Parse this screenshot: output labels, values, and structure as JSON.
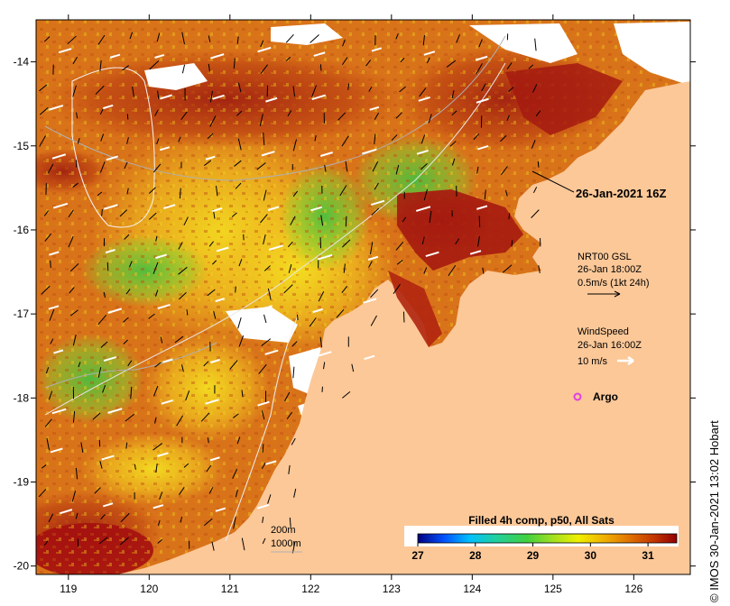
{
  "map": {
    "lon_range": [
      118.6,
      126.7
    ],
    "lat_range": [
      -20.1,
      -13.5
    ],
    "x_ticks": [
      "119",
      "120",
      "121",
      "122",
      "123",
      "124",
      "125",
      "126"
    ],
    "y_ticks": [
      "-14",
      "-15",
      "-16",
      "-17",
      "-18",
      "-19",
      "-20"
    ],
    "colors": {
      "land": "#fcc898",
      "cloud": "#ffffff",
      "sst_warm": "#a52a10",
      "sst_mid": "#e28a1c",
      "sst_cool": "#f0d020",
      "sst_cold": "#30b040"
    }
  },
  "labels": {
    "timestamp": "26-Jan-2021 16Z",
    "current_title": "NRT00 GSL",
    "current_time": "26-Jan 18:00Z",
    "current_scale": "0.5m/s (1kt 24h)",
    "wind_title": "WindSpeed",
    "wind_time": "26-Jan 16:00Z",
    "wind_scale": "10 m/s",
    "argo": "Argo",
    "depth_200": "200m",
    "depth_1000": "1000m",
    "credit": "© IMOS 30-Jan-2021 13:02 Hobart"
  },
  "colorbar": {
    "title": "Filled 4h comp, p50, All Sats",
    "ticks": [
      "27",
      "28",
      "29",
      "30",
      "31"
    ],
    "min": 27,
    "max": 31.5,
    "stops": [
      "#00007f",
      "#0050ff",
      "#00c0ff",
      "#20d0a0",
      "#40d040",
      "#a0e020",
      "#f0f000",
      "#f0b000",
      "#e07000",
      "#c03000",
      "#900000"
    ]
  },
  "markers": {
    "argo_color": "#e040e0"
  }
}
